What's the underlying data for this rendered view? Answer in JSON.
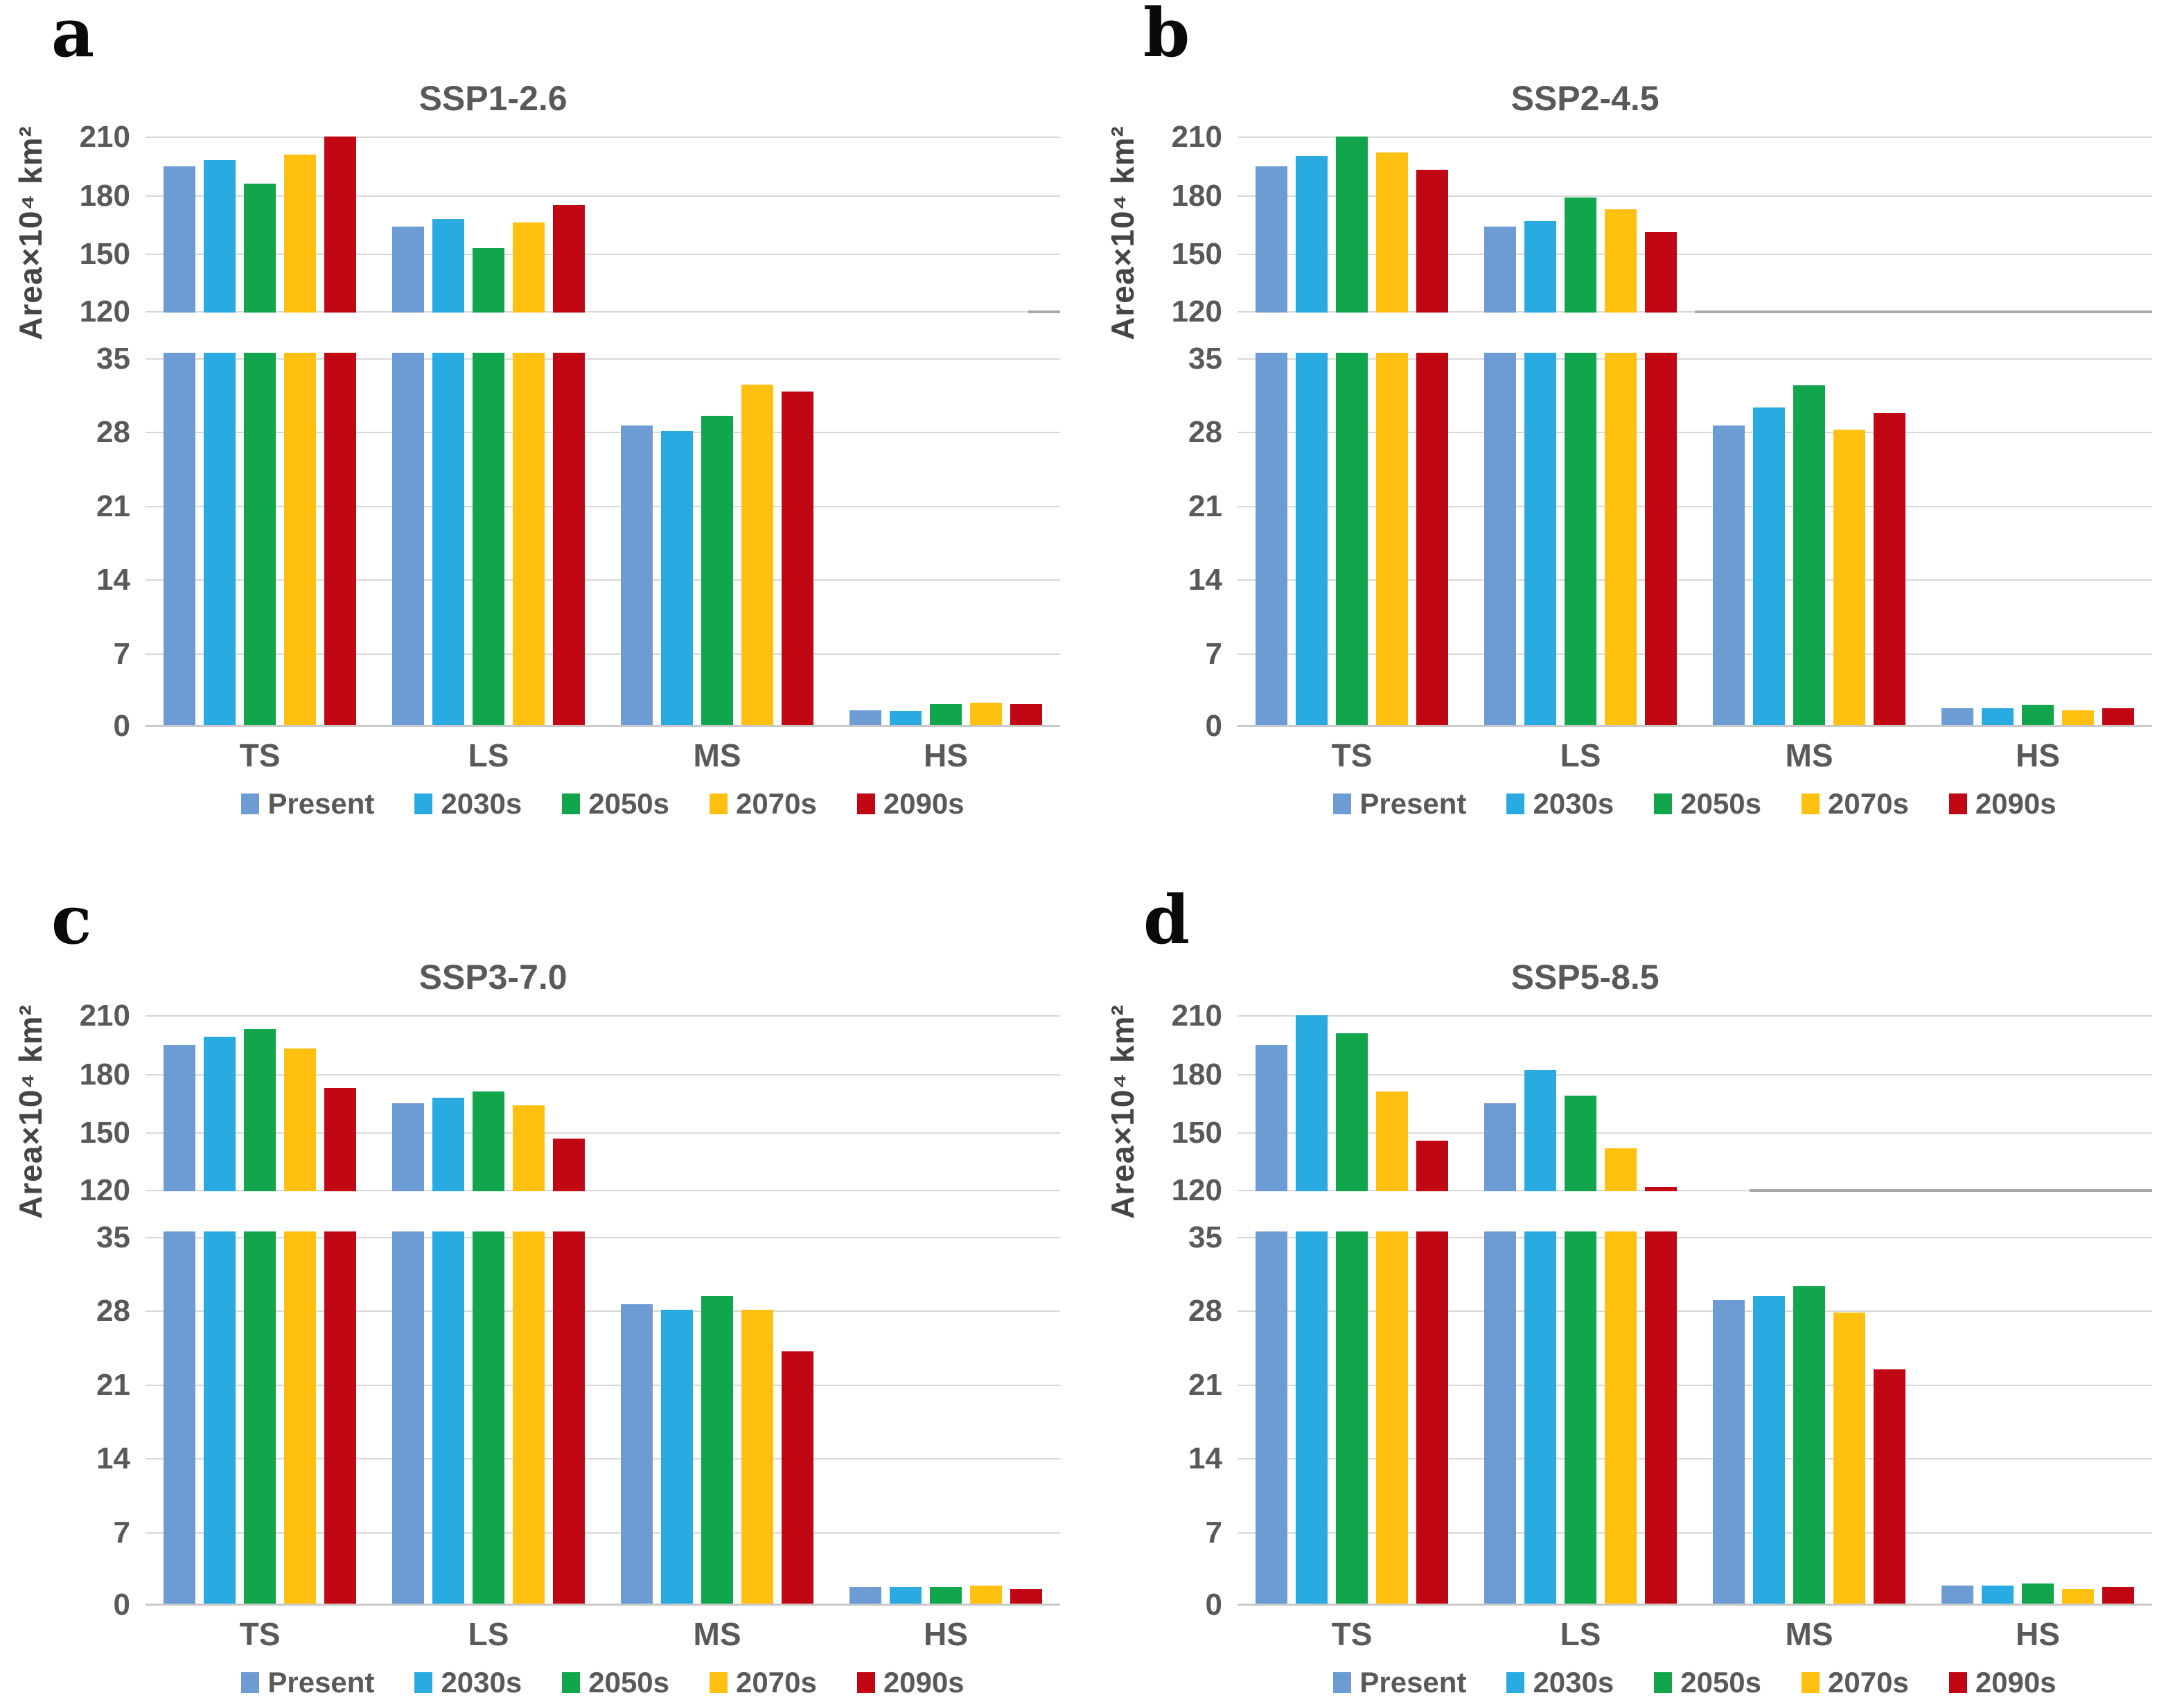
{
  "figure": {
    "description": "Four-panel grouped bar figure comparing snow/area classes under SSP scenarios",
    "panel_letters": [
      "a",
      "b",
      "c",
      "d"
    ]
  },
  "styles": {
    "label_color": "#595959",
    "ylabel_color": "#454545",
    "grid_color": "#D8D8D8",
    "baseline_color": "#C9C9C9",
    "background": "#FFFFFF",
    "series_palette": {
      "Present": "#6D9BD3",
      "2030s": "#29ABE2",
      "2050s": "#11A64C",
      "2070s": "#FFC010",
      "2090s": "#C00713"
    }
  },
  "chart_data": [
    {
      "type": "bar",
      "panel_letter": "a",
      "title": "SSP1-2.6",
      "ylabel": "Area×10⁴ km²",
      "categories": [
        "TS",
        "LS",
        "MS",
        "HS"
      ],
      "series": [
        {
          "name": "Present",
          "color": "#6D9BD3",
          "values": [
            195,
            164,
            28.6,
            1.6
          ]
        },
        {
          "name": "2030s",
          "color": "#29ABE2",
          "values": [
            198,
            168,
            28.1,
            1.5
          ]
        },
        {
          "name": "2050s",
          "color": "#11A64C",
          "values": [
            186,
            153,
            29.5,
            2.2
          ]
        },
        {
          "name": "2070s",
          "color": "#FFC010",
          "values": [
            201,
            166,
            32.5,
            2.3
          ]
        },
        {
          "name": "2090s",
          "color": "#C00713",
          "values": [
            210,
            175,
            31.8,
            2.2
          ]
        }
      ],
      "broken_axis": {
        "upper_range": [
          120,
          214
        ],
        "upper_ticks": [
          210,
          180,
          150,
          120
        ],
        "lower_range": [
          0,
          35.5
        ],
        "lower_ticks": [
          35,
          28,
          21,
          14,
          7,
          0
        ]
      },
      "grid": true,
      "legend_position": "bottom"
    },
    {
      "type": "bar",
      "panel_letter": "b",
      "title": "SSP2-4.5",
      "ylabel": "Area×10⁴ km²",
      "categories": [
        "TS",
        "LS",
        "MS",
        "HS"
      ],
      "series": [
        {
          "name": "Present",
          "color": "#6D9BD3",
          "values": [
            195,
            164,
            28.6,
            1.8
          ]
        },
        {
          "name": "2030s",
          "color": "#29ABE2",
          "values": [
            200,
            167,
            30.3,
            1.8
          ]
        },
        {
          "name": "2050s",
          "color": "#11A64C",
          "values": [
            210,
            179,
            32.4,
            2.1
          ]
        },
        {
          "name": "2070s",
          "color": "#FFC010",
          "values": [
            202,
            173,
            28.2,
            1.6
          ]
        },
        {
          "name": "2090s",
          "color": "#C00713",
          "values": [
            193,
            161,
            29.8,
            1.8
          ]
        }
      ],
      "broken_axis": {
        "upper_range": [
          120,
          214
        ],
        "upper_ticks": [
          210,
          180,
          150,
          120
        ],
        "lower_range": [
          0,
          35.5
        ],
        "lower_ticks": [
          35,
          28,
          21,
          14,
          7,
          0
        ]
      },
      "grid": true,
      "legend_position": "bottom"
    },
    {
      "type": "bar",
      "panel_letter": "c",
      "title": "SSP3-7.0",
      "ylabel": "Area×10⁴ km²",
      "categories": [
        "TS",
        "LS",
        "MS",
        "HS"
      ],
      "series": [
        {
          "name": "Present",
          "color": "#6D9BD3",
          "values": [
            195,
            165,
            28.6,
            1.8
          ]
        },
        {
          "name": "2030s",
          "color": "#29ABE2",
          "values": [
            199,
            168,
            28.1,
            1.8
          ]
        },
        {
          "name": "2050s",
          "color": "#11A64C",
          "values": [
            203,
            171,
            29.4,
            1.8
          ]
        },
        {
          "name": "2070s",
          "color": "#FFC010",
          "values": [
            193,
            164,
            28.1,
            1.9
          ]
        },
        {
          "name": "2090s",
          "color": "#C00713",
          "values": [
            173,
            147,
            24.1,
            1.6
          ]
        }
      ],
      "broken_axis": {
        "upper_range": [
          120,
          214
        ],
        "upper_ticks": [
          210,
          180,
          150,
          120
        ],
        "lower_range": [
          0,
          35.5
        ],
        "lower_ticks": [
          35,
          28,
          21,
          14,
          7,
          0
        ]
      },
      "grid": true,
      "legend_position": "bottom"
    },
    {
      "type": "bar",
      "panel_letter": "d",
      "title": "SSP5-8.5",
      "ylabel": "Area×10⁴ km²",
      "categories": [
        "TS",
        "LS",
        "MS",
        "HS"
      ],
      "series": [
        {
          "name": "Present",
          "color": "#6D9BD3",
          "values": [
            195,
            165,
            29.0,
            1.9
          ]
        },
        {
          "name": "2030s",
          "color": "#29ABE2",
          "values": [
            210,
            182,
            29.4,
            1.9
          ]
        },
        {
          "name": "2050s",
          "color": "#11A64C",
          "values": [
            201,
            169,
            30.3,
            2.1
          ]
        },
        {
          "name": "2070s",
          "color": "#FFC010",
          "values": [
            171,
            142,
            27.8,
            1.6
          ]
        },
        {
          "name": "2090s",
          "color": "#C00713",
          "values": [
            146,
            122,
            22.4,
            1.8
          ]
        }
      ],
      "broken_axis": {
        "upper_range": [
          120,
          214
        ],
        "upper_ticks": [
          210,
          180,
          150,
          120
        ],
        "lower_range": [
          0,
          35.5
        ],
        "lower_ticks": [
          35,
          28,
          21,
          14,
          7,
          0
        ]
      },
      "grid": true,
      "legend_position": "bottom"
    }
  ]
}
